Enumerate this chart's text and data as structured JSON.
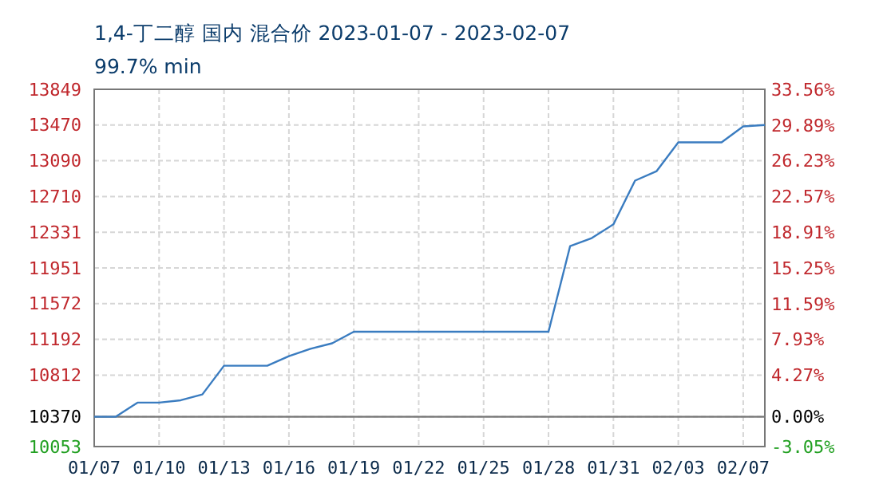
{
  "chart_data": {
    "type": "line",
    "title": "1,4-丁二醇 国内 混合价 2023-01-07 - 2023-02-07",
    "subtitle": "99.7% min",
    "categories": [
      "01/07",
      null,
      null,
      "01/10",
      null,
      null,
      "01/13",
      null,
      null,
      "01/16",
      null,
      null,
      "01/19",
      null,
      null,
      "01/22",
      null,
      null,
      "01/25",
      null,
      null,
      "01/28",
      null,
      null,
      "01/31",
      null,
      null,
      "02/03",
      null,
      null,
      "02/07",
      null
    ],
    "series": [
      {
        "color": "#3a7cc0",
        "values": [
          10370,
          10370,
          10520,
          10520,
          10545,
          10607,
          10912,
          10912,
          10912,
          11014,
          11092,
          11150,
          11273,
          11273,
          11273,
          11273,
          11273,
          11273,
          11273,
          11273,
          11273,
          11273,
          12184,
          12268,
          12414,
          12879,
          12980,
          13285,
          13285,
          13285,
          13455,
          13470
        ]
      }
    ],
    "ylim": [
      10053,
      13849
    ],
    "yticks": [
      10053,
      10370,
      10812,
      11192,
      11572,
      11951,
      12331,
      12710,
      13090,
      13470,
      13849
    ],
    "y2lim": [
      -3.05,
      33.56
    ],
    "y2ticks": [
      {
        "value": -3.05,
        "label": "-3.05%"
      },
      {
        "value": 0,
        "label": "0.00%"
      },
      {
        "value": 4.27,
        "label": "4.27%"
      },
      {
        "value": 7.93,
        "label": "7.93%"
      },
      {
        "value": 11.59,
        "label": "11.59%"
      },
      {
        "value": 15.25,
        "label": "15.25%"
      },
      {
        "value": 18.91,
        "label": "18.91%"
      },
      {
        "value": 22.57,
        "label": "22.57%"
      },
      {
        "value": 26.23,
        "label": "26.23%"
      },
      {
        "value": 29.89,
        "label": "29.89%"
      },
      {
        "value": 33.56,
        "label": "33.56%"
      }
    ],
    "ref_lines": [
      {
        "axis": "y",
        "value": 10370,
        "color": "#777777"
      }
    ],
    "grid": true,
    "line_style": "solid"
  }
}
